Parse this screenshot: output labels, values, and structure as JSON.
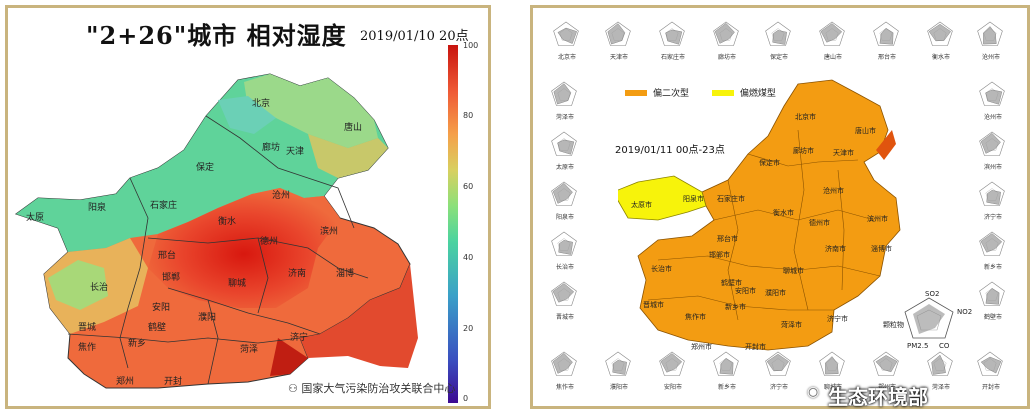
{
  "left": {
    "title": "\"2+26\"城市  相对湿度",
    "timestamp": "2019/01/10  20点",
    "colorbar_ticks": [
      "100",
      "80",
      "60",
      "40",
      "20",
      "0"
    ],
    "cities": [
      "北京",
      "唐山",
      "廊坊",
      "天津",
      "保定",
      "沧州",
      "太原",
      "阳泉",
      "石家庄",
      "衡水",
      "德州",
      "滨州",
      "邢台",
      "邯郸",
      "长治",
      "济南",
      "淄博",
      "聊城",
      "安阳",
      "鹤壁",
      "濮阳",
      "菏泽",
      "济宁",
      "晋城",
      "新乡",
      "焦作",
      "开封",
      "郑州"
    ],
    "watermark": "国家大气污染防治攻关联合中心"
  },
  "right": {
    "legend": [
      {
        "label": "偏二次型",
        "color": "#f39c12"
      },
      {
        "label": "偏燃煤型",
        "color": "#f7f30b"
      }
    ],
    "timestamp": "2019/01/11  00点-23点",
    "cities": [
      "北京市",
      "唐山市",
      "廊坊市",
      "天津市",
      "保定市",
      "沧州市",
      "太原市",
      "阳泉市",
      "石家庄市",
      "衡水市",
      "德州市",
      "滨州市",
      "邢台市",
      "邯郸市",
      "长治市",
      "济南市",
      "淄博市",
      "聊城市",
      "晋城市",
      "新乡市",
      "鹤壁市",
      "濮阳市",
      "菏泽市",
      "济宁市",
      "焦作市",
      "郑州市",
      "开封市",
      "安阳市"
    ],
    "radar_top": [
      "北京市",
      "天津市",
      "石家庄市",
      "廊坊市",
      "保定市",
      "唐山市",
      "邢台市",
      "衡水市",
      "沧州市"
    ],
    "radar_left": [
      "菏泽市",
      "太原市",
      "阳泉市",
      "长治市",
      "晋城市"
    ],
    "radar_right": [
      "沧州市",
      "滨州市",
      "济宁市",
      "新乡市",
      "鹤壁市"
    ],
    "radar_bottom": [
      "焦作市",
      "濮阳市",
      "安阳市",
      "新乡市",
      "济宁市",
      "聊城市",
      "郑州市",
      "菏泽市",
      "开封市"
    ],
    "inset_labels": [
      "SO2",
      "NO2",
      "PM2.5",
      "CO",
      "颗粒物"
    ],
    "brand": "生态环境部"
  }
}
